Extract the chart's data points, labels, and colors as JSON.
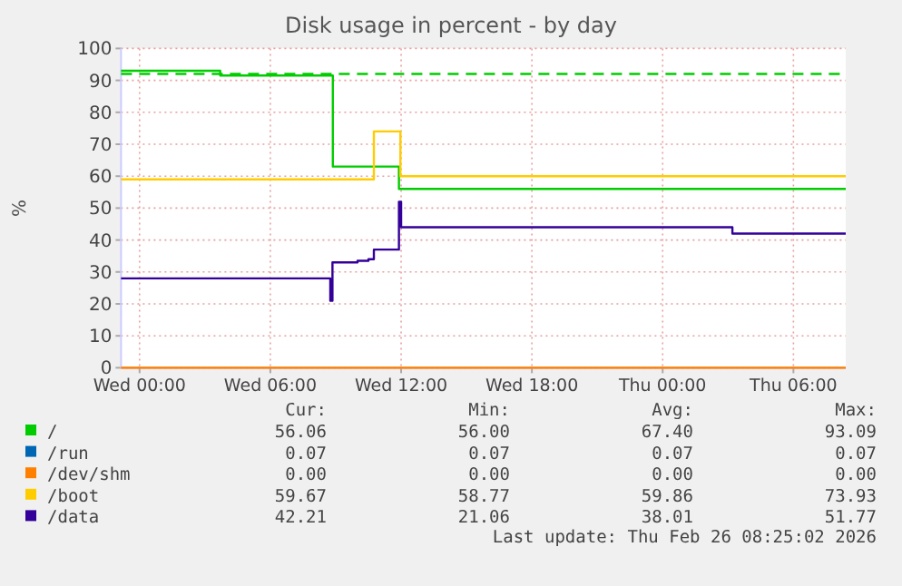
{
  "chart_data": {
    "type": "step",
    "title": "Disk usage in percent - by day",
    "ylabel": "%",
    "xlim": [
      "2026-02-24T23:09",
      "2026-02-26T08:24"
    ],
    "xticks": [
      {
        "value": "2026-02-25T00:00",
        "label": "Wed 00:00"
      },
      {
        "value": "2026-02-25T06:00",
        "label": "Wed 06:00"
      },
      {
        "value": "2026-02-25T12:00",
        "label": "Wed 12:00"
      },
      {
        "value": "2026-02-25T18:00",
        "label": "Wed 18:00"
      },
      {
        "value": "2026-02-26T00:00",
        "label": "Thu 00:00"
      },
      {
        "value": "2026-02-26T06:00",
        "label": "Thu 06:00"
      }
    ],
    "ylim": [
      0,
      100
    ],
    "yticks": [
      0,
      10,
      20,
      30,
      40,
      50,
      60,
      70,
      80,
      90,
      100
    ],
    "grid": true,
    "legend": "bottom left",
    "line_style": "solid",
    "marker": "none",
    "series": [
      {
        "name": "/",
        "color": "#00cc00",
        "x": [
          "2026-02-24T23:09",
          "2026-02-25T03:42",
          "2026-02-25T08:52",
          "2026-02-25T11:54",
          "2026-02-26T08:24"
        ],
        "values": [
          93,
          91.5,
          63,
          56,
          56
        ]
      },
      {
        "name": "/run",
        "color": "#0066b3",
        "values": [
          null,
          null
        ]
      },
      {
        "name": "/dev/shm",
        "color": "#ff8000",
        "x": [
          "2026-02-24T23:09",
          "2026-02-26T08:24"
        ],
        "values": [
          0,
          0
        ]
      },
      {
        "name": "/boot",
        "color": "#ffcc00",
        "x": [
          "2026-02-24T23:09",
          "2026-02-25T10:45",
          "2026-02-25T11:58",
          "2026-02-26T08:24"
        ],
        "values": [
          59,
          74,
          60,
          60
        ]
      },
      {
        "name": "/data",
        "color": "#330099",
        "x": [
          "2026-02-24T23:09",
          "2026-02-25T08:45",
          "2026-02-25T08:51",
          "2026-02-25T10:00",
          "2026-02-25T10:30",
          "2026-02-25T10:45",
          "2026-02-25T11:54",
          "2026-02-25T12:00",
          "2026-02-25T12:06",
          "2026-02-26T03:12",
          "2026-02-26T08:24"
        ],
        "values": [
          28,
          21,
          33,
          33.5,
          34,
          37,
          52,
          44,
          44,
          42,
          42
        ]
      }
    ],
    "ref_lines": [
      {
        "axis": "y",
        "value": 92,
        "color": "#00cc00",
        "line_style": "dashed"
      }
    ],
    "annotations": [
      "Cur:",
      "Min:",
      "Avg:",
      "Max:",
      "56.06",
      "56.00",
      "67.40",
      "93.09",
      "0.07",
      "0.07",
      "0.07",
      "0.07",
      "0.00",
      "0.00",
      "0.00",
      "0.00",
      "59.67",
      "58.77",
      "59.86",
      "73.93",
      "42.21",
      "21.06",
      "38.01",
      "51.77",
      "Last update: Thu Feb 26 08:25:02 2026"
    ]
  }
}
